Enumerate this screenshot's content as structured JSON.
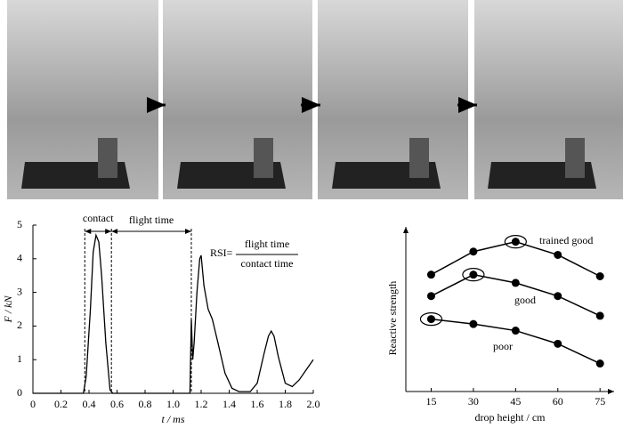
{
  "chart_data": [
    {
      "type": "line",
      "x_label": "t / ms",
      "y_label": "F / kN",
      "annotations": {
        "contact": "contact",
        "flight": "flight time",
        "rsi": "RSI=",
        "numerator": "flight time",
        "denominator": "contact time"
      },
      "x": [
        0,
        0.36,
        0.38,
        0.41,
        0.43,
        0.45,
        0.47,
        0.49,
        0.52,
        0.55,
        0.57,
        1.12,
        1.13,
        1.14,
        1.15,
        1.17,
        1.19,
        1.2,
        1.22,
        1.25,
        1.28,
        1.32,
        1.37,
        1.42,
        1.47,
        1.55,
        1.6,
        1.65,
        1.68,
        1.7,
        1.72,
        1.75,
        1.8,
        1.85,
        1.9,
        1.95,
        2.0
      ],
      "values": [
        0,
        0,
        0.5,
        2.5,
        4.2,
        4.7,
        4.5,
        3.5,
        1.5,
        0.1,
        0,
        0,
        2.2,
        1.0,
        1.5,
        3.0,
        4.0,
        4.1,
        3.2,
        2.5,
        2.2,
        1.5,
        0.6,
        0.15,
        0.05,
        0.05,
        0.3,
        1.2,
        1.7,
        1.85,
        1.7,
        1.1,
        0.3,
        0.2,
        0.4,
        0.7,
        1.0
      ],
      "color": "#000000",
      "dashed_x": [
        0.37,
        0.56,
        1.13
      ],
      "xlim": [
        0,
        2.0
      ],
      "xticks": [
        0,
        0.2,
        0.4,
        0.6,
        0.8,
        {
          "value": 1,
          "label": "1.0"
        },
        1.2,
        1.4,
        1.6,
        1.8,
        {
          "value": 2,
          "label": "2.0"
        }
      ],
      "ylim": [
        0,
        5
      ],
      "yticks": [
        0,
        1,
        2,
        3,
        4,
        5
      ]
    },
    {
      "type": "line",
      "x_label": "drop height / cm",
      "y_label": "Reactive strength",
      "x": [
        15,
        30,
        45,
        60,
        75
      ],
      "series": [
        {
          "name": "trained good",
          "color": "#000000",
          "values": [
            7.1,
            8.5,
            9.1,
            8.3,
            7.0
          ],
          "optimum_index": 2
        },
        {
          "name": "good",
          "color": "#000000",
          "values": [
            5.8,
            7.1,
            6.6,
            5.8,
            4.6
          ],
          "optimum_index": 1
        },
        {
          "name": "poor",
          "color": "#000000",
          "values": [
            4.4,
            4.1,
            3.7,
            2.9,
            1.7
          ],
          "optimum_index": 0
        }
      ],
      "xlim": [
        6,
        80
      ],
      "xticks": [
        15,
        30,
        45,
        60,
        75
      ],
      "ylim": [
        0,
        10
      ]
    }
  ]
}
